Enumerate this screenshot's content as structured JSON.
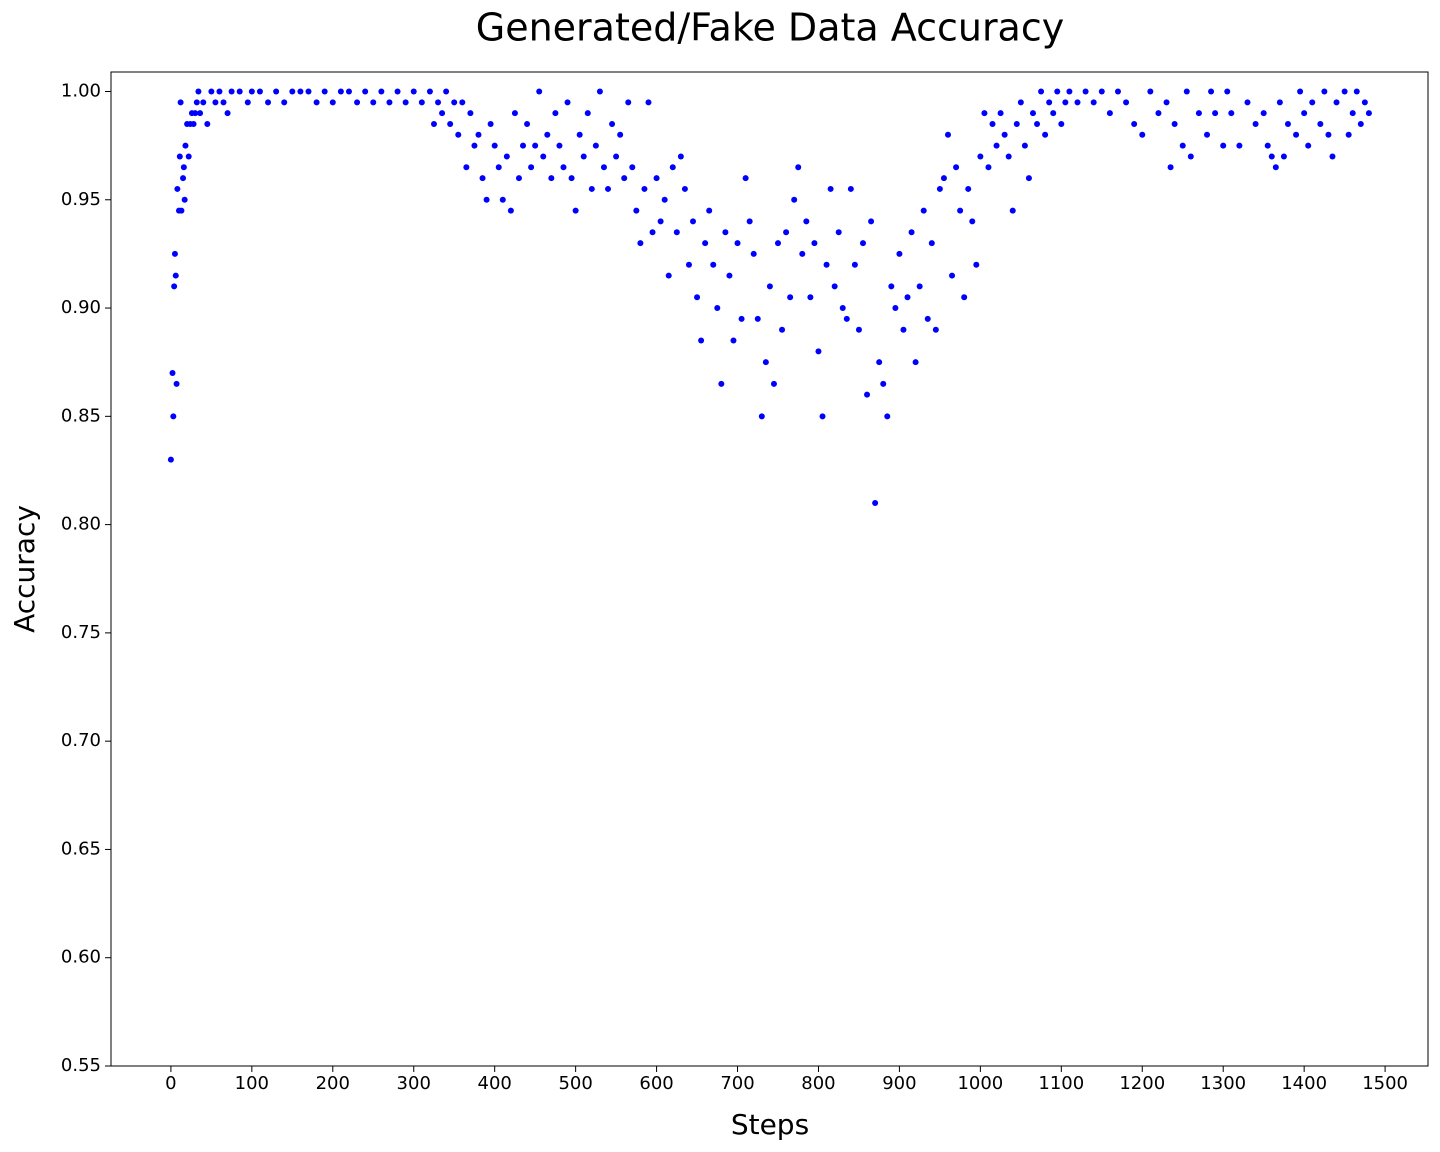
{
  "chart_data": {
    "type": "scatter",
    "title": "Generated/Fake Data Accuracy",
    "x_label": "Steps",
    "y_label": "Accuracy",
    "color": "#0000ff",
    "xlim": [
      -74,
      1553
    ],
    "ylim": [
      0.55,
      1.009
    ],
    "xticks": [
      0,
      100,
      200,
      300,
      400,
      500,
      600,
      700,
      800,
      900,
      1000,
      1100,
      1200,
      1300,
      1400,
      1500
    ],
    "yticks": [
      0.55,
      {
        "value": 0.6,
        "label": "0.60"
      },
      0.65,
      {
        "value": 0.7,
        "label": "0.70"
      },
      0.75,
      {
        "value": 0.8,
        "label": "0.80"
      },
      0.85,
      {
        "value": 0.9,
        "label": "0.90"
      },
      0.95,
      {
        "value": 1.0,
        "label": "1.00"
      }
    ],
    "x": [
      0,
      2,
      3,
      4,
      5,
      6,
      7,
      8,
      10,
      11,
      12,
      13,
      15,
      16,
      17,
      18,
      20,
      22,
      24,
      26,
      28,
      30,
      32,
      34,
      36,
      40,
      45,
      50,
      55,
      60,
      65,
      70,
      75,
      85,
      95,
      100,
      110,
      120,
      130,
      140,
      150,
      160,
      170,
      180,
      190,
      200,
      210,
      220,
      230,
      240,
      250,
      260,
      270,
      280,
      290,
      300,
      310,
      320,
      325,
      330,
      335,
      340,
      345,
      350,
      355,
      360,
      365,
      370,
      375,
      380,
      385,
      390,
      395,
      400,
      405,
      410,
      415,
      420,
      425,
      430,
      435,
      440,
      445,
      450,
      455,
      460,
      465,
      470,
      475,
      480,
      485,
      490,
      495,
      500,
      505,
      510,
      515,
      520,
      525,
      530,
      535,
      540,
      545,
      550,
      555,
      560,
      565,
      570,
      575,
      580,
      585,
      590,
      595,
      600,
      605,
      610,
      615,
      620,
      625,
      630,
      635,
      640,
      645,
      650,
      655,
      660,
      665,
      670,
      675,
      680,
      685,
      690,
      695,
      700,
      705,
      710,
      715,
      720,
      725,
      730,
      735,
      740,
      745,
      750,
      755,
      760,
      765,
      770,
      775,
      780,
      785,
      790,
      795,
      800,
      805,
      810,
      815,
      820,
      825,
      830,
      835,
      840,
      845,
      850,
      855,
      860,
      865,
      870,
      875,
      880,
      885,
      890,
      895,
      900,
      905,
      910,
      915,
      920,
      925,
      930,
      935,
      940,
      945,
      950,
      955,
      960,
      965,
      970,
      975,
      980,
      985,
      990,
      995,
      1000,
      1005,
      1010,
      1015,
      1020,
      1025,
      1030,
      1035,
      1040,
      1045,
      1050,
      1055,
      1060,
      1065,
      1070,
      1075,
      1080,
      1085,
      1090,
      1095,
      1100,
      1105,
      1110,
      1120,
      1130,
      1140,
      1150,
      1160,
      1170,
      1180,
      1190,
      1200,
      1210,
      1220,
      1230,
      1235,
      1240,
      1250,
      1255,
      1260,
      1270,
      1280,
      1285,
      1290,
      1300,
      1305,
      1310,
      1320,
      1330,
      1340,
      1350,
      1355,
      1360,
      1365,
      1370,
      1375,
      1380,
      1390,
      1395,
      1400,
      1405,
      1410,
      1420,
      1425,
      1430,
      1435,
      1440,
      1450,
      1455,
      1460,
      1465,
      1470,
      1475,
      1480
    ],
    "values": [
      0.83,
      0.87,
      0.85,
      0.91,
      0.925,
      0.915,
      0.865,
      0.955,
      0.945,
      0.97,
      0.995,
      0.945,
      0.96,
      0.965,
      0.95,
      0.975,
      0.985,
      0.97,
      0.985,
      0.99,
      0.985,
      0.99,
      0.995,
      1.0,
      0.99,
      0.995,
      0.985,
      1.0,
      0.995,
      1.0,
      0.995,
      0.99,
      1.0,
      1.0,
      0.995,
      1.0,
      1.0,
      0.995,
      1.0,
      0.995,
      1.0,
      1.0,
      1.0,
      0.995,
      1.0,
      0.995,
      1.0,
      1.0,
      0.995,
      1.0,
      0.995,
      1.0,
      0.995,
      1.0,
      0.995,
      1.0,
      0.995,
      1.0,
      0.985,
      0.995,
      0.99,
      1.0,
      0.985,
      0.995,
      0.98,
      0.995,
      0.965,
      0.99,
      0.975,
      0.98,
      0.96,
      0.95,
      0.985,
      0.975,
      0.965,
      0.95,
      0.97,
      0.945,
      0.99,
      0.96,
      0.975,
      0.985,
      0.965,
      0.975,
      1.0,
      0.97,
      0.98,
      0.96,
      0.99,
      0.975,
      0.965,
      0.995,
      0.96,
      0.945,
      0.98,
      0.97,
      0.99,
      0.955,
      0.975,
      1.0,
      0.965,
      0.955,
      0.985,
      0.97,
      0.98,
      0.96,
      0.995,
      0.965,
      0.945,
      0.93,
      0.955,
      0.995,
      0.935,
      0.96,
      0.94,
      0.95,
      0.915,
      0.965,
      0.935,
      0.97,
      0.955,
      0.92,
      0.94,
      0.905,
      0.885,
      0.93,
      0.945,
      0.92,
      0.9,
      0.865,
      0.935,
      0.915,
      0.885,
      0.93,
      0.895,
      0.96,
      0.94,
      0.925,
      0.895,
      0.85,
      0.875,
      0.91,
      0.865,
      0.93,
      0.89,
      0.935,
      0.905,
      0.95,
      0.965,
      0.925,
      0.94,
      0.905,
      0.93,
      0.88,
      0.85,
      0.92,
      0.955,
      0.91,
      0.935,
      0.9,
      0.895,
      0.955,
      0.92,
      0.89,
      0.93,
      0.86,
      0.94,
      0.81,
      0.875,
      0.865,
      0.85,
      0.91,
      0.9,
      0.925,
      0.89,
      0.905,
      0.935,
      0.875,
      0.91,
      0.945,
      0.895,
      0.93,
      0.89,
      0.955,
      0.96,
      0.98,
      0.915,
      0.965,
      0.945,
      0.905,
      0.955,
      0.94,
      0.92,
      0.97,
      0.99,
      0.965,
      0.985,
      0.975,
      0.99,
      0.98,
      0.97,
      0.945,
      0.985,
      0.995,
      0.975,
      0.96,
      0.99,
      0.985,
      1.0,
      0.98,
      0.995,
      0.99,
      1.0,
      0.985,
      0.995,
      1.0,
      0.995,
      1.0,
      0.995,
      1.0,
      0.99,
      1.0,
      0.995,
      0.985,
      0.98,
      1.0,
      0.99,
      0.995,
      0.965,
      0.985,
      0.975,
      1.0,
      0.97,
      0.99,
      0.98,
      1.0,
      0.99,
      0.975,
      1.0,
      0.99,
      0.975,
      0.995,
      0.985,
      0.99,
      0.975,
      0.97,
      0.965,
      0.995,
      0.97,
      0.985,
      0.98,
      1.0,
      0.99,
      0.975,
      0.995,
      0.985,
      1.0,
      0.98,
      0.97,
      0.995,
      1.0,
      0.98,
      0.99,
      1.0,
      0.985,
      0.995,
      0.99
    ]
  }
}
